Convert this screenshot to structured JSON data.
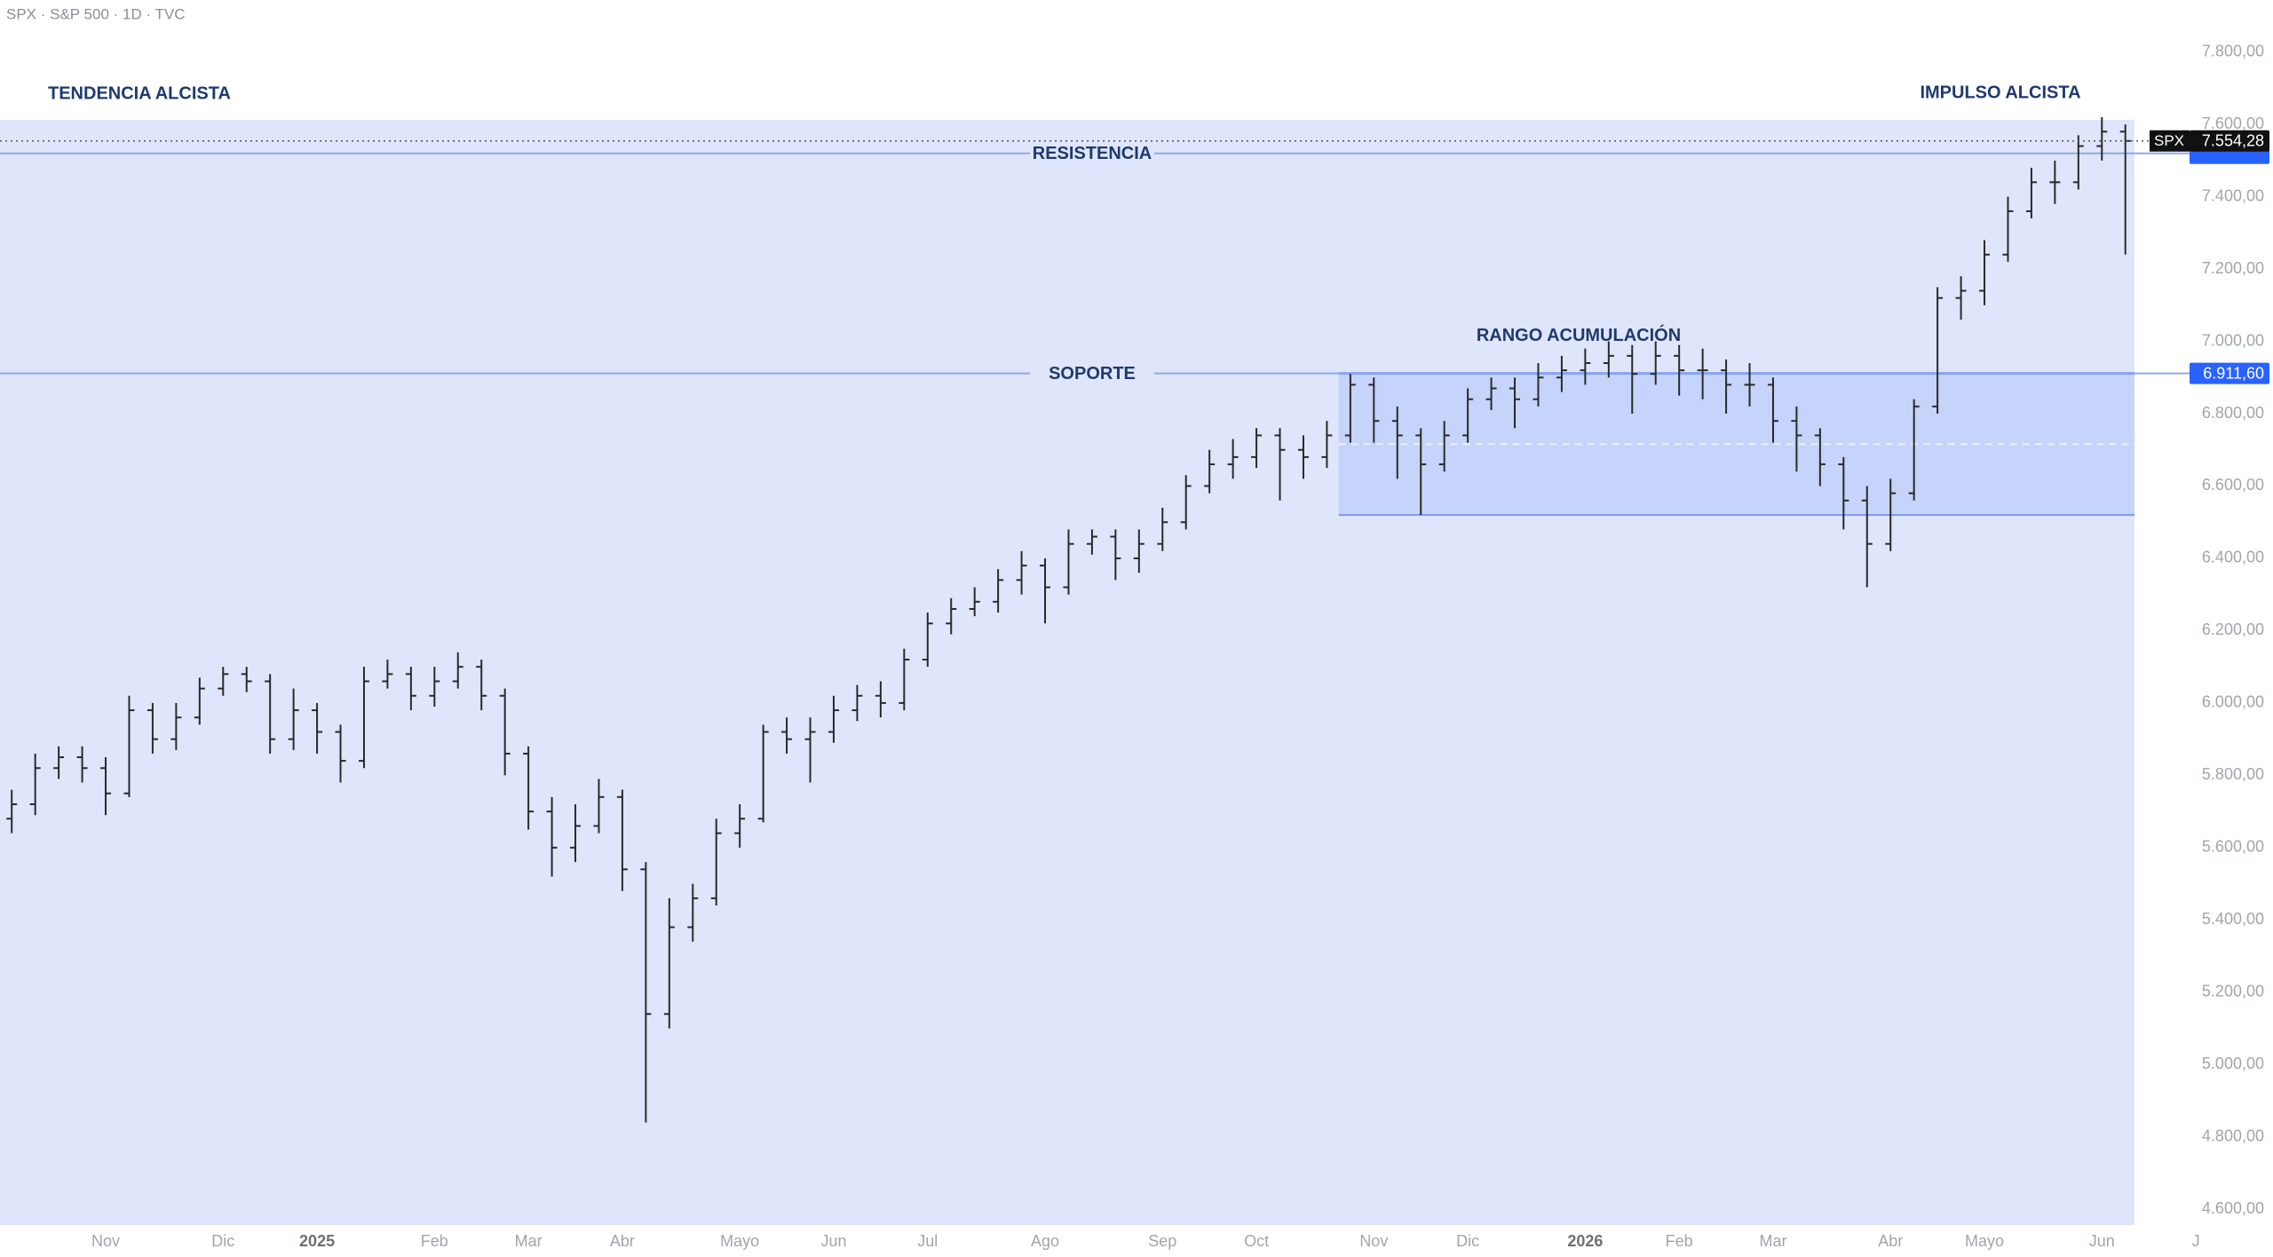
{
  "chart_data": {
    "type": "ohlc",
    "title": "SPX · S&P 500 · 1D · TVC",
    "symbol": "SPX",
    "color": "#2a2a2a",
    "grid": false,
    "categories": [
      null,
      null,
      null,
      null,
      "Nov",
      null,
      null,
      null,
      null,
      "Dic",
      null,
      null,
      null,
      "2025",
      null,
      null,
      null,
      null,
      "Feb",
      null,
      null,
      null,
      "Mar",
      null,
      null,
      null,
      "Abr",
      null,
      null,
      null,
      null,
      "Mayo",
      null,
      null,
      null,
      "Jun",
      null,
      null,
      null,
      "Jul",
      null,
      null,
      null,
      null,
      "Ago",
      null,
      null,
      null,
      null,
      "Sep",
      null,
      null,
      null,
      "Oct",
      null,
      null,
      null,
      null,
      "Nov",
      null,
      null,
      null,
      "Dic",
      null,
      null,
      null,
      null,
      "2026",
      null,
      null,
      null,
      "Feb",
      null,
      null,
      null,
      "Mar",
      null,
      null,
      null,
      null,
      "Abr",
      null,
      null,
      null,
      "Mayo",
      null,
      null,
      null,
      null,
      "Jun",
      null,
      null,
      null,
      "J"
    ],
    "open": [
      5680,
      5720,
      5820,
      5850,
      5820,
      5750,
      5980,
      5900,
      5960,
      6040,
      6080,
      6060,
      5900,
      5980,
      5920,
      5840,
      6060,
      6080,
      6020,
      6060,
      6100,
      6020,
      5860,
      5700,
      5600,
      5660,
      5740,
      5540,
      5140,
      5380,
      5460,
      5640,
      5680,
      5920,
      5900,
      5920,
      5980,
      6020,
      6000,
      6120,
      6220,
      6260,
      6280,
      6340,
      6380,
      6320,
      6440,
      6460,
      6400,
      6440,
      6500,
      6600,
      6660,
      6680,
      6740,
      6700,
      6680,
      6740,
      6880,
      6780,
      6740,
      6660,
      6740,
      6840,
      6870,
      6840,
      6900,
      6920,
      6940,
      6960,
      6910,
      6960,
      6920,
      6920,
      6880,
      6880,
      6780,
      6740,
      6660,
      6560,
      6440,
      6580,
      6820,
      7120,
      7140,
      7240,
      7360,
      7440,
      7440,
      7540,
      7580,
      null,
      null,
      null
    ],
    "high": [
      5760,
      5860,
      5880,
      5880,
      5850,
      6020,
      6000,
      6000,
      6070,
      6100,
      6100,
      6080,
      6040,
      6000,
      5940,
      6100,
      6120,
      6100,
      6100,
      6140,
      6120,
      6040,
      5880,
      5740,
      5720,
      5790,
      5760,
      5560,
      5460,
      5500,
      5680,
      5720,
      5940,
      5960,
      5960,
      6020,
      6050,
      6060,
      6150,
      6250,
      6290,
      6320,
      6370,
      6420,
      6400,
      6480,
      6480,
      6480,
      6480,
      6540,
      6630,
      6700,
      6730,
      6760,
      6760,
      6740,
      6780,
      6910,
      6900,
      6820,
      6760,
      6780,
      6870,
      6900,
      6900,
      6940,
      6960,
      6980,
      7000,
      6990,
      7000,
      6990,
      6980,
      6950,
      6940,
      6900,
      6820,
      6760,
      6680,
      6600,
      6620,
      6840,
      7150,
      7180,
      7280,
      7400,
      7480,
      7500,
      7570,
      7620,
      7600,
      null,
      null,
      null
    ],
    "low": [
      5640,
      5690,
      5790,
      5780,
      5690,
      5740,
      5860,
      5870,
      5940,
      6020,
      6030,
      5860,
      5870,
      5860,
      5780,
      5820,
      6040,
      5980,
      5990,
      6040,
      5980,
      5800,
      5650,
      5520,
      5560,
      5640,
      5480,
      4840,
      5100,
      5340,
      5440,
      5600,
      5670,
      5860,
      5780,
      5890,
      5950,
      5960,
      5980,
      6100,
      6190,
      6240,
      6250,
      6300,
      6220,
      6300,
      6410,
      6340,
      6360,
      6420,
      6480,
      6580,
      6620,
      6650,
      6560,
      6620,
      6650,
      6720,
      6720,
      6620,
      6520,
      6640,
      6720,
      6810,
      6760,
      6820,
      6860,
      6880,
      6900,
      6800,
      6880,
      6850,
      6840,
      6800,
      6820,
      6720,
      6640,
      6600,
      6480,
      6320,
      6420,
      6560,
      6800,
      7060,
      7100,
      7220,
      7340,
      7380,
      7420,
      7500,
      7240,
      null,
      null,
      null
    ],
    "close": [
      5720,
      5820,
      5850,
      5820,
      5750,
      5980,
      5900,
      5960,
      6040,
      6080,
      6060,
      5900,
      5980,
      5920,
      5840,
      6060,
      6080,
      6020,
      6060,
      6100,
      6020,
      5860,
      5700,
      5600,
      5660,
      5740,
      5540,
      5140,
      5380,
      5460,
      5640,
      5680,
      5920,
      5900,
      5920,
      5980,
      6020,
      6000,
      6120,
      6220,
      6260,
      6280,
      6340,
      6380,
      6320,
      6440,
      6460,
      6400,
      6440,
      6500,
      6600,
      6660,
      6680,
      6740,
      6700,
      6680,
      6740,
      6880,
      6780,
      6740,
      6660,
      6740,
      6840,
      6870,
      6840,
      6900,
      6920,
      6940,
      6960,
      6910,
      6960,
      6920,
      6920,
      6880,
      6880,
      6780,
      6740,
      6660,
      6560,
      6440,
      6580,
      6820,
      7120,
      7140,
      7240,
      7360,
      7440,
      7440,
      7540,
      7580,
      7554.28,
      null,
      null,
      null
    ],
    "last_price": {
      "value": 7554.28,
      "label": "7.554,28"
    },
    "levels": [
      {
        "name": "RESISTENCIA",
        "value": 7520
      },
      {
        "name": "SOPORTE",
        "value": 6911.6,
        "label": "6.911,60"
      }
    ],
    "range_box": {
      "label": "RANGO ACUMULACIÓN",
      "top": 6911.6,
      "bottom": 6520
    },
    "annotations": [
      "TENDENCIA ALCISTA",
      "IMPULSO ALCISTA"
    ],
    "ylim": [
      4468,
      7944
    ],
    "yticks": [
      {
        "value": 4600,
        "label": "4.600,00"
      },
      {
        "value": 4800,
        "label": "4.800,00"
      },
      {
        "value": 5000,
        "label": "5.000,00"
      },
      {
        "value": 5200,
        "label": "5.200,00"
      },
      {
        "value": 5400,
        "label": "5.400,00"
      },
      {
        "value": 5600,
        "label": "5.600,00"
      },
      {
        "value": 5800,
        "label": "5.800,00"
      },
      {
        "value": 6000,
        "label": "6.000,00"
      },
      {
        "value": 6200,
        "label": "6.200,00"
      },
      {
        "value": 6400,
        "label": "6.400,00"
      },
      {
        "value": 6600,
        "label": "6.600,00"
      },
      {
        "value": 6800,
        "label": "6.800,00"
      },
      {
        "value": 7000,
        "label": "7.000,00"
      },
      {
        "value": 7200,
        "label": "7.200,00"
      },
      {
        "value": 7400,
        "label": "7.400,00"
      },
      {
        "value": 7600,
        "label": "7.600,00"
      },
      {
        "value": 7800,
        "label": "7.800,00"
      }
    ]
  }
}
